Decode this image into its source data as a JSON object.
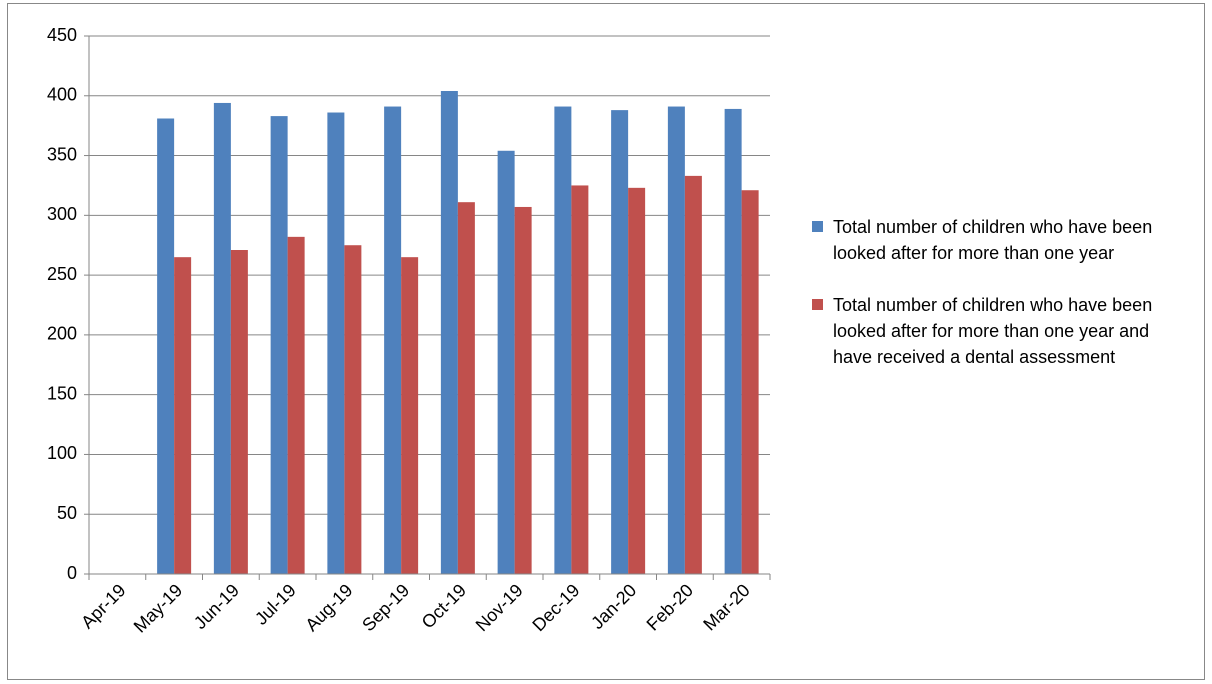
{
  "chart_data": {
    "type": "bar",
    "categories": [
      "Apr-19",
      "May-19",
      "Jun-19",
      "Jul-19",
      "Aug-19",
      "Sep-19",
      "Oct-19",
      "Nov-19",
      "Dec-19",
      "Jan-20",
      "Feb-20",
      "Mar-20"
    ],
    "series": [
      {
        "name": "Total number of children who have been looked after for more than one year",
        "color": "#4f81bd",
        "values": [
          null,
          381,
          394,
          383,
          386,
          391,
          404,
          354,
          391,
          388,
          391,
          389
        ]
      },
      {
        "name": "Total number of children who have been looked after for more than one year and have received a dental assessment",
        "color": "#c0504d",
        "values": [
          null,
          265,
          271,
          282,
          275,
          265,
          311,
          307,
          325,
          323,
          333,
          321
        ]
      }
    ],
    "ylim": [
      0,
      450
    ],
    "yticks": [
      0,
      50,
      100,
      150,
      200,
      250,
      300,
      350,
      400,
      450
    ],
    "grid": true,
    "legend": "right"
  }
}
